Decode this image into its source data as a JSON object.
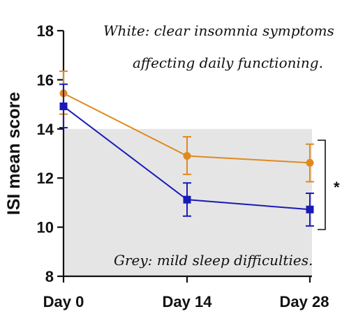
{
  "chart_data": {
    "type": "line",
    "ylabel": "ISI mean score",
    "xlabel": "",
    "title": "",
    "categories": [
      "Day 0",
      "Day 14",
      "Day 28"
    ],
    "ylim": [
      8,
      18
    ],
    "yticks": [
      8,
      10,
      12,
      14,
      16,
      18
    ],
    "background_bands": [
      {
        "from": 8,
        "to": 14,
        "color": "#e5e5e5"
      },
      {
        "from": 14,
        "to": 18,
        "color": "#ffffff"
      }
    ],
    "series": [
      {
        "color": "#e08a1e",
        "marker": "circle",
        "values": [
          15.45,
          12.9,
          12.62
        ],
        "err_low": [
          14.6,
          12.15,
          11.85
        ],
        "err_high": [
          16.35,
          13.68,
          13.38
        ]
      },
      {
        "color": "#1a1ab8",
        "marker": "square",
        "values": [
          14.92,
          11.12,
          10.72
        ],
        "err_low": [
          14.05,
          10.45,
          10.05
        ],
        "err_high": [
          15.82,
          11.8,
          11.38
        ]
      }
    ],
    "annotations": {
      "white_note_line1": "White: clear insomnia symptoms",
      "white_note_line2": "affecting daily functioning.",
      "grey_note": "Grey: mild sleep difficulties.",
      "significance": "*"
    },
    "grid": false,
    "legend": "none"
  }
}
